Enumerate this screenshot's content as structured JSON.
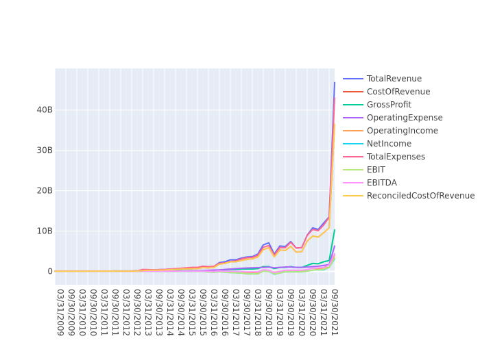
{
  "chart_data": {
    "type": "line",
    "title": "",
    "xlabel": "",
    "ylabel": "",
    "grid": true,
    "plot_background": "#e5ecf6",
    "legend_position": "right",
    "ylim": [
      -3.3,
      50.3
    ],
    "y_unit": "B",
    "y_ticks": [
      0,
      10,
      20,
      30,
      40
    ],
    "y_tick_labels": [
      "0",
      "10B",
      "20B",
      "30B",
      "40B"
    ],
    "x": [
      "03/31/2009",
      "06/30/2009",
      "09/30/2009",
      "12/31/2009",
      "03/31/2010",
      "06/30/2010",
      "09/30/2010",
      "12/31/2010",
      "03/31/2011",
      "06/30/2011",
      "09/30/2011",
      "12/31/2011",
      "03/31/2012",
      "06/30/2012",
      "09/30/2012",
      "12/31/2012",
      "03/31/2013",
      "06/30/2013",
      "09/30/2013",
      "12/31/2013",
      "03/31/2014",
      "06/30/2014",
      "09/30/2014",
      "12/31/2014",
      "03/31/2015",
      "06/30/2015",
      "09/30/2015",
      "12/31/2015",
      "03/31/2016",
      "06/30/2016",
      "09/30/2016",
      "12/31/2016",
      "03/31/2017",
      "06/30/2017",
      "09/30/2017",
      "12/31/2017",
      "03/31/2018",
      "06/30/2018",
      "09/30/2018",
      "12/31/2018",
      "03/31/2019",
      "06/30/2019",
      "09/30/2019",
      "12/31/2019",
      "03/31/2020",
      "06/30/2020",
      "09/30/2020",
      "12/31/2020",
      "03/31/2021",
      "06/30/2021",
      "09/30/2021",
      "12/31/2021"
    ],
    "x_tick_labels": [
      "03/31/2009",
      "09/30/2009",
      "03/31/2010",
      "09/30/2010",
      "03/31/2011",
      "09/30/2011",
      "03/31/2012",
      "09/30/2012",
      "03/31/2013",
      "09/30/2013",
      "03/31/2014",
      "09/30/2014",
      "03/31/2015",
      "09/30/2015",
      "03/31/2016",
      "09/30/2016",
      "03/31/2017",
      "09/30/2017",
      "03/31/2018",
      "09/30/2018",
      "03/31/2019",
      "09/30/2019",
      "03/31/2020",
      "09/30/2020",
      "03/31/2021",
      "09/30/2021"
    ],
    "series": [
      {
        "name": "TotalRevenue",
        "color": "#636efa",
        "values": [
          0.08,
          0.08,
          0.08,
          0.09,
          0.09,
          0.09,
          0.1,
          0.1,
          0.1,
          0.1,
          0.1,
          0.11,
          0.11,
          0.12,
          0.12,
          0.15,
          0.3,
          0.4,
          0.4,
          0.45,
          0.5,
          0.6,
          0.65,
          0.75,
          0.8,
          0.85,
          0.9,
          1.2,
          1.1,
          1.2,
          2.2,
          2.4,
          2.9,
          2.9,
          3.3,
          3.6,
          3.7,
          4.3,
          6.6,
          7.1,
          4.3,
          6.3,
          6.2,
          7.4,
          5.8,
          5.9,
          9.0,
          10.8,
          10.4,
          12.0,
          13.5,
          46.8
        ]
      },
      {
        "name": "CostOfRevenue",
        "color": "#ef553b",
        "values": [
          0.05,
          0.05,
          0.05,
          0.06,
          0.06,
          0.06,
          0.06,
          0.07,
          0.07,
          0.07,
          0.07,
          0.08,
          0.08,
          0.08,
          0.08,
          0.1,
          0.2,
          0.28,
          0.3,
          0.33,
          0.37,
          0.45,
          0.5,
          0.58,
          0.62,
          0.66,
          0.7,
          0.95,
          0.9,
          1.0,
          1.8,
          2.0,
          2.4,
          2.4,
          2.7,
          3.0,
          3.1,
          3.6,
          5.4,
          5.9,
          3.6,
          5.3,
          5.2,
          6.2,
          4.8,
          4.9,
          7.5,
          8.8,
          8.5,
          9.6,
          10.8,
          36.5
        ]
      },
      {
        "name": "GrossProfit",
        "color": "#00cc96",
        "values": [
          0.03,
          0.03,
          0.03,
          0.03,
          0.03,
          0.03,
          0.04,
          0.03,
          0.03,
          0.03,
          0.03,
          0.03,
          0.03,
          0.04,
          0.04,
          0.05,
          0.1,
          0.12,
          0.1,
          0.12,
          0.13,
          0.15,
          0.15,
          0.17,
          0.18,
          0.19,
          0.2,
          0.25,
          0.2,
          0.2,
          0.4,
          0.4,
          0.5,
          0.5,
          0.6,
          0.6,
          0.6,
          0.7,
          1.2,
          1.2,
          0.7,
          1.0,
          1.0,
          1.2,
          1.0,
          1.0,
          1.5,
          2.0,
          1.9,
          2.4,
          2.7,
          10.3
        ]
      },
      {
        "name": "OperatingExpense",
        "color": "#ab63fa",
        "values": [
          0.02,
          0.02,
          0.02,
          0.02,
          0.02,
          0.02,
          0.02,
          0.02,
          0.02,
          0.02,
          0.02,
          0.02,
          0.02,
          0.02,
          0.03,
          0.03,
          0.05,
          0.05,
          0.06,
          0.06,
          0.07,
          0.08,
          0.09,
          0.1,
          0.12,
          0.13,
          0.15,
          0.2,
          0.3,
          0.35,
          0.4,
          0.5,
          0.6,
          0.7,
          0.8,
          0.85,
          0.9,
          0.95,
          1.0,
          1.1,
          0.9,
          1.0,
          1.1,
          1.1,
          1.0,
          1.0,
          1.1,
          1.2,
          1.3,
          1.5,
          1.7,
          6.3
        ]
      },
      {
        "name": "OperatingIncome",
        "color": "#ffa15a",
        "values": [
          0.01,
          0.01,
          0.01,
          0.01,
          0.01,
          0.01,
          0.02,
          0.01,
          0.01,
          0.01,
          0.01,
          0.01,
          0.01,
          0.02,
          0.01,
          0.02,
          0.05,
          0.07,
          0.04,
          0.06,
          0.06,
          0.07,
          0.06,
          0.07,
          0.06,
          0.06,
          0.05,
          0.05,
          -0.1,
          -0.15,
          0.0,
          -0.1,
          -0.1,
          -0.2,
          -0.2,
          -0.25,
          -0.3,
          -0.25,
          0.2,
          0.1,
          -0.2,
          0.0,
          -0.1,
          0.1,
          0.0,
          0.0,
          0.4,
          0.8,
          0.6,
          0.9,
          1.0,
          4.0
        ]
      },
      {
        "name": "NetIncome",
        "color": "#19d3f3",
        "values": [
          0.01,
          0.01,
          0.01,
          0.01,
          0.01,
          0.01,
          0.01,
          0.01,
          0.01,
          0.01,
          0.01,
          0.01,
          0.01,
          0.01,
          0.01,
          0.01,
          0.03,
          0.05,
          0.03,
          0.04,
          0.05,
          0.05,
          0.05,
          0.05,
          0.04,
          0.04,
          0.03,
          0.03,
          -0.15,
          -0.2,
          -0.05,
          -0.2,
          -0.3,
          -0.35,
          -0.4,
          -0.6,
          -0.6,
          -0.6,
          0.1,
          0.0,
          -0.7,
          -0.4,
          -0.1,
          -0.1,
          -0.1,
          -0.1,
          0.1,
          0.3,
          0.4,
          0.4,
          1.0,
          3.1
        ]
      },
      {
        "name": "TotalExpenses",
        "color": "#ff6692",
        "values": [
          0.07,
          0.07,
          0.07,
          0.08,
          0.08,
          0.08,
          0.08,
          0.09,
          0.09,
          0.09,
          0.09,
          0.1,
          0.1,
          0.1,
          0.11,
          0.13,
          0.5,
          0.45,
          0.4,
          0.45,
          0.5,
          0.6,
          0.7,
          0.8,
          0.9,
          1.0,
          1.0,
          1.3,
          1.2,
          1.3,
          2.0,
          2.1,
          2.5,
          2.6,
          3.1,
          3.4,
          3.5,
          4.0,
          6.0,
          6.4,
          4.0,
          5.9,
          5.9,
          7.2,
          5.8,
          5.9,
          8.9,
          10.4,
          10.1,
          11.5,
          13.4,
          43.0
        ]
      },
      {
        "name": "EBIT",
        "color": "#b6e880",
        "values": [
          0.01,
          0.01,
          0.01,
          0.01,
          0.01,
          0.01,
          0.01,
          0.01,
          0.01,
          0.01,
          0.01,
          0.01,
          0.01,
          0.01,
          0.01,
          0.01,
          0.03,
          0.05,
          0.03,
          0.04,
          0.05,
          0.05,
          0.05,
          0.05,
          0.04,
          0.04,
          0.03,
          0.03,
          -0.15,
          -0.2,
          -0.05,
          -0.2,
          -0.3,
          -0.35,
          -0.4,
          -0.6,
          -0.6,
          -0.6,
          0.1,
          0.0,
          -0.6,
          -0.4,
          -0.1,
          -0.1,
          -0.1,
          -0.1,
          0.1,
          0.3,
          0.4,
          0.5,
          1.0,
          3.3
        ]
      },
      {
        "name": "EBITDA",
        "color": "#ff97ff",
        "values": [
          0.02,
          0.02,
          0.02,
          0.02,
          0.02,
          0.02,
          0.02,
          0.02,
          0.02,
          0.02,
          0.02,
          0.02,
          0.02,
          0.02,
          0.02,
          0.03,
          0.05,
          0.07,
          0.06,
          0.07,
          0.08,
          0.09,
          0.1,
          0.1,
          0.1,
          0.1,
          0.1,
          0.1,
          0.05,
          0.0,
          0.15,
          0.05,
          0.05,
          0.0,
          0.0,
          -0.1,
          -0.1,
          -0.1,
          0.4,
          0.3,
          -0.3,
          0.0,
          0.3,
          0.3,
          0.3,
          0.3,
          0.5,
          0.8,
          0.9,
          1.0,
          1.6,
          4.4
        ]
      },
      {
        "name": "ReconciledCostOfRevenue",
        "color": "#fecb52",
        "values": [
          0.05,
          0.05,
          0.05,
          0.06,
          0.06,
          0.06,
          0.06,
          0.07,
          0.07,
          0.07,
          0.07,
          0.08,
          0.08,
          0.08,
          0.08,
          0.1,
          0.2,
          0.28,
          0.3,
          0.33,
          0.37,
          0.45,
          0.5,
          0.58,
          0.62,
          0.66,
          0.7,
          0.95,
          0.9,
          1.0,
          1.8,
          2.0,
          2.4,
          2.4,
          2.7,
          3.0,
          3.1,
          3.6,
          5.4,
          5.9,
          3.6,
          5.3,
          5.2,
          6.2,
          4.8,
          4.9,
          7.5,
          8.8,
          8.5,
          9.6,
          10.8,
          36.5
        ]
      }
    ]
  }
}
